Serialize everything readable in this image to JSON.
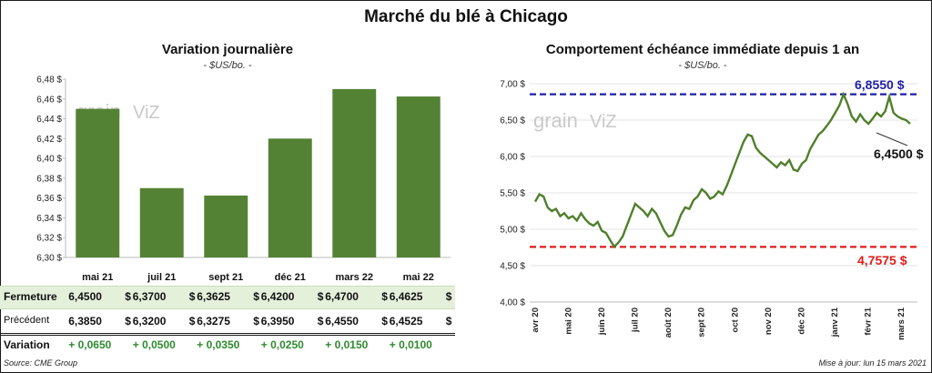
{
  "title": "Marché du blé à Chicago",
  "left_panel": {
    "title": "Variation  journalière",
    "unit": "- $US/bo. -",
    "table": {
      "rows": [
        {
          "label": "Fermeture",
          "values": [
            "6,4500",
            "6,3700",
            "6,3625",
            "6,4200",
            "6,4700",
            "6,4625"
          ],
          "suffix": "$"
        },
        {
          "label": "Précédent",
          "values": [
            "6,3850",
            "6,3200",
            "6,3275",
            "6,3950",
            "6,4550",
            "6,4525"
          ],
          "suffix": "$"
        },
        {
          "label": "Variation",
          "values": [
            "+ 0,0650",
            "+ 0,0500",
            "+ 0,0350",
            "+ 0,0250",
            "+ 0,0150",
            "+ 0,0100"
          ],
          "suffix": ""
        }
      ]
    }
  },
  "right_panel": {
    "title": "Comportement  échéance immédiate depuis 1 an",
    "unit": "- $US/bo. -",
    "watermark": "grainwiz",
    "annotations": {
      "high": "6,8550 $",
      "low": "4,7575 $",
      "last": "6,4500 $"
    }
  },
  "footer": {
    "source": "Source: CME Group",
    "updated": "Mise à jour: lun 15 mars 2021"
  },
  "colors": {
    "bar": "#548235",
    "line": "#4f7f2b",
    "high": "#1f1fa8",
    "low": "#e01b1b",
    "positive": "#2f8a2f",
    "band": "#e5f0db"
  },
  "chart_data": [
    {
      "type": "bar",
      "categories": [
        "mai 21",
        "juil 21",
        "sept 21",
        "déc 21",
        "mars 22",
        "mai 22"
      ],
      "values": [
        6.45,
        6.37,
        6.3625,
        6.42,
        6.47,
        6.4625
      ],
      "ylim": [
        6.3,
        6.48
      ],
      "yticks": [
        "6,30 $",
        "6,32 $",
        "6,34 $",
        "6,36 $",
        "6,38 $",
        "6,40 $",
        "6,42 $",
        "6,44 $",
        "6,46 $",
        "6,48 $"
      ],
      "grid": false
    },
    {
      "type": "line",
      "x_labels": [
        "avr 20",
        "mai 20",
        "juin 20",
        "juil 20",
        "août 20",
        "sept 20",
        "oct 20",
        "nov 20",
        "déc 20",
        "janv 21",
        "févr 21",
        "mars 21"
      ],
      "ylim": [
        4.0,
        7.0
      ],
      "yticks": [
        "4,00 $",
        "4,50 $",
        "5,00 $",
        "5,50 $",
        "6,00 $",
        "6,50 $",
        "7,00 $"
      ],
      "reference_lines": [
        {
          "value": 6.855,
          "style": "dashed",
          "color": "#1f1fa8"
        },
        {
          "value": 4.7575,
          "style": "dashed",
          "color": "#e01b1b"
        }
      ],
      "series": [
        {
          "values": [
            5.38,
            5.48,
            5.45,
            5.3,
            5.25,
            5.28,
            5.18,
            5.22,
            5.15,
            5.18,
            5.12,
            5.22,
            5.14,
            5.08,
            5.05,
            5.1,
            4.98,
            4.95,
            4.85,
            4.76,
            4.82,
            4.9,
            5.05,
            5.2,
            5.35,
            5.3,
            5.25,
            5.18,
            5.28,
            5.22,
            5.1,
            4.98,
            4.9,
            4.92,
            5.05,
            5.2,
            5.3,
            5.28,
            5.4,
            5.45,
            5.55,
            5.5,
            5.42,
            5.45,
            5.52,
            5.48,
            5.6,
            5.75,
            5.9,
            6.05,
            6.2,
            6.3,
            6.28,
            6.12,
            6.05,
            6.0,
            5.95,
            5.9,
            5.85,
            5.92,
            5.88,
            5.95,
            5.82,
            5.8,
            5.9,
            5.95,
            6.1,
            6.2,
            6.3,
            6.35,
            6.42,
            6.5,
            6.6,
            6.7,
            6.855,
            6.72,
            6.55,
            6.48,
            6.58,
            6.5,
            6.45,
            6.52,
            6.6,
            6.55,
            6.62,
            6.82,
            6.6,
            6.55,
            6.52,
            6.5,
            6.45
          ]
        }
      ]
    }
  ]
}
